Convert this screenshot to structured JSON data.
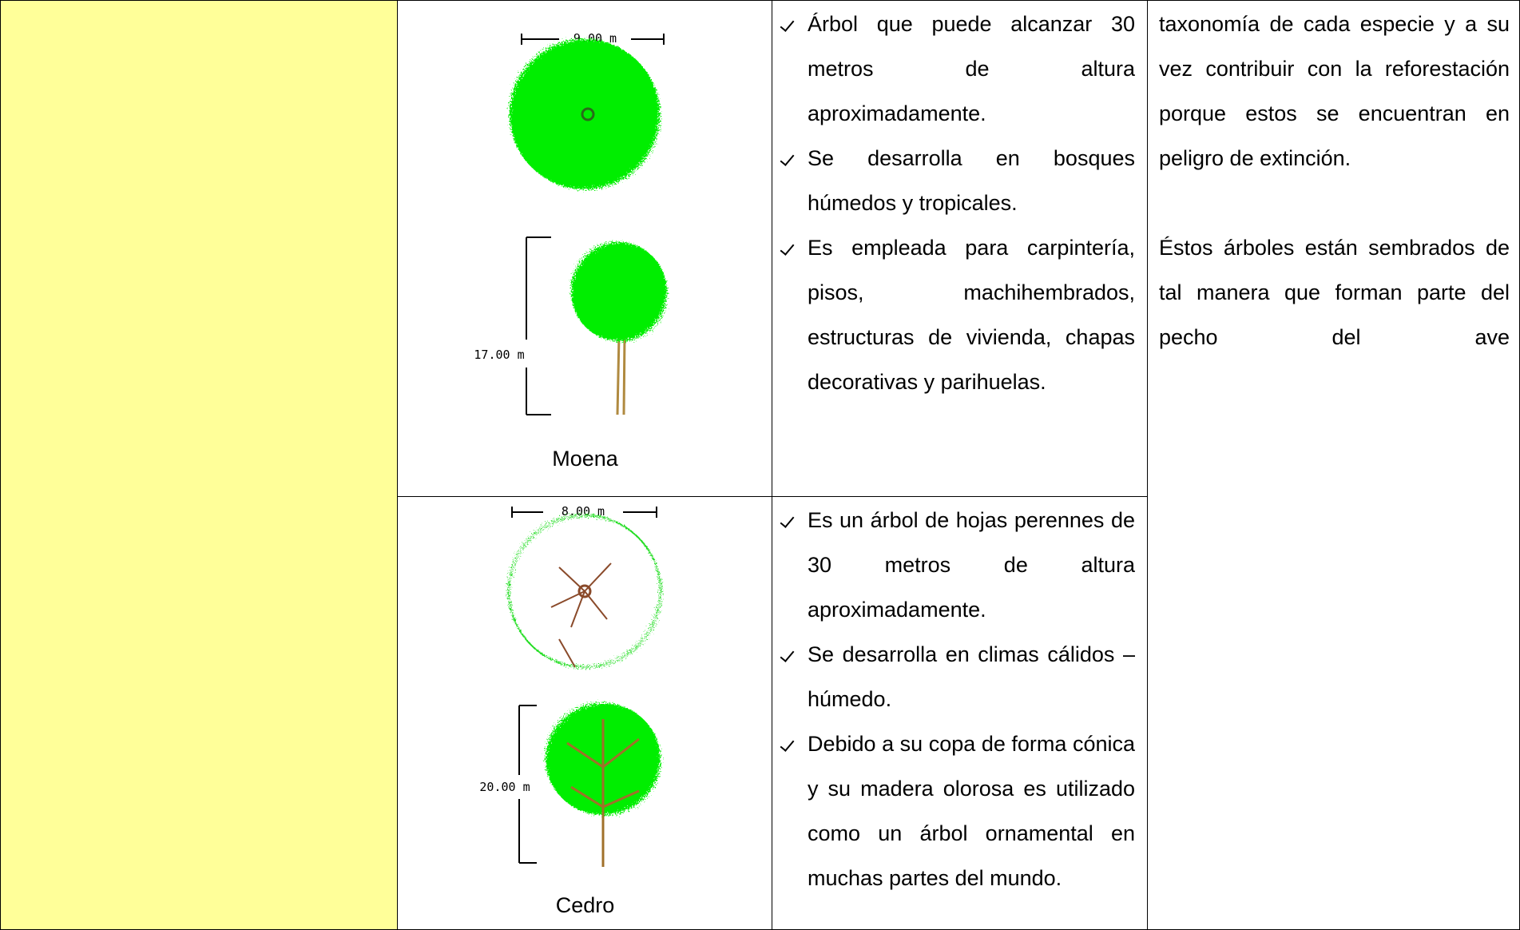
{
  "table": {
    "rows": [
      {
        "plan_dimension": "9.00 m",
        "elevation_dimension": "17.00 m",
        "name": "Moena",
        "bullets": [
          "Árbol que puede alcanzar 30 metros de altura aproximadamente.",
          "Se desarrolla en bosques húmedos y tropicales.",
          "Es empleada para carpintería, pisos, machihembrados, estructuras de vivienda, chapas decorativas y parihuelas."
        ]
      },
      {
        "plan_dimension": "8.00 m",
        "elevation_dimension": "20.00 m",
        "name": "Cedro",
        "bullets": [
          "Es un árbol de hojas perennes de  30 metros de altura aproximadamente.",
          "Se desarrolla en climas cálidos – húmedo.",
          "Debido a su copa de forma cónica y su madera olorosa es utilizado como un árbol ornamental en muchas partes del mundo."
        ]
      }
    ],
    "notes": [
      "taxonomía de cada especie y a su vez contribuir con la reforestación porque estos se encuentran en peligro de extinción.",
      "Éstos árboles están sembrados de tal manera que forman parte del pecho del ave"
    ]
  }
}
